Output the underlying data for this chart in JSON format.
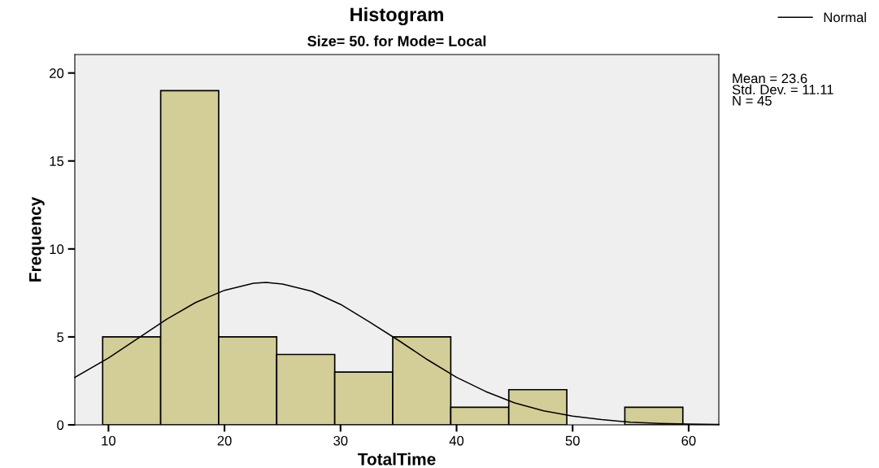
{
  "chart_data": {
    "type": "histogram",
    "title": "Histogram",
    "subtitle": "Size= 50. for Mode= Local",
    "xlabel": "TotalTime",
    "ylabel": "Frequency",
    "bins": [
      9.5,
      14.5,
      19.5,
      24.5,
      29.5,
      34.5,
      39.5,
      44.5,
      49.5,
      54.5,
      59.5
    ],
    "values": [
      5,
      19,
      5,
      4,
      3,
      5,
      1,
      2,
      0,
      1
    ],
    "color": "#d3ce97",
    "series": [
      {
        "name": "Normal",
        "type": "line",
        "color": "#000000",
        "x": [
          7.1,
          10,
          12.5,
          15,
          17.5,
          20,
          22.5,
          23.6,
          25,
          27.5,
          30,
          32.5,
          35,
          37.5,
          40,
          42.5,
          45,
          47.5,
          50,
          52.5,
          55,
          57.5,
          60,
          62.6
        ],
        "values": [
          2.7,
          3.8,
          4.9,
          6.0,
          6.95,
          7.65,
          8.05,
          8.1,
          8.0,
          7.6,
          6.85,
          5.85,
          4.8,
          3.7,
          2.7,
          1.9,
          1.25,
          0.8,
          0.5,
          0.3,
          0.15,
          0.08,
          0.04,
          0.02
        ]
      }
    ],
    "xlim": [
      7.1,
      62.6
    ],
    "xticks": [
      10,
      20,
      30,
      40,
      50,
      60
    ],
    "ylim": [
      0,
      21.05
    ],
    "yticks": [
      0,
      5,
      10,
      15,
      20
    ],
    "grid": false,
    "legend": "top right",
    "annotations": [
      "Mean = 23.6\nStd. Dev. = 11.11\nN = 45"
    ]
  }
}
